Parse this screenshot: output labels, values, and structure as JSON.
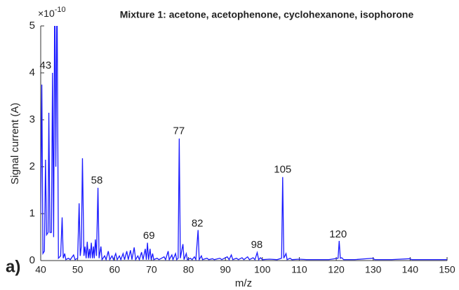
{
  "chart_data": {
    "type": "line",
    "title": "Mixture 1: acetone, acetophenone, cyclohexanone, isophorone",
    "panel_label": "a)",
    "x_label": "m/z",
    "y_label": "Signal current (A)",
    "y_multiplier": {
      "base": "×10",
      "exponent": "-10"
    },
    "color": "#1a1aff",
    "xlim": [
      40,
      150
    ],
    "xticks": [
      40,
      50,
      60,
      70,
      80,
      90,
      100,
      110,
      120,
      130,
      140,
      150
    ],
    "ylim": [
      0,
      5
    ],
    "yticks": [
      0,
      1,
      2,
      3,
      4,
      5
    ],
    "x": [
      40,
      40.3,
      40.6,
      41,
      41.3,
      41.6,
      42,
      42.2,
      42.5,
      42.9,
      43.2,
      43.5,
      43.8,
      44.1,
      44.4,
      44.8,
      45.4,
      45.8,
      46.1,
      46.5,
      46.8,
      47.5,
      48,
      48.9,
      49.3,
      50,
      50.4,
      50.7,
      51,
      51.3,
      51.7,
      52,
      52.3,
      52.6,
      52.9,
      53.2,
      53.4,
      53.7,
      54,
      54.3,
      54.5,
      54.8,
      55.1,
      55.5,
      55.8,
      56.3,
      56.6,
      57.3,
      57.7,
      58.3,
      58.7,
      59.3,
      59.7,
      60.3,
      60.7,
      61.3,
      61.7,
      62.3,
      62.7,
      63.3,
      63.7,
      64.3,
      64.7,
      65.3,
      65.7,
      66.3,
      66.7,
      67.3,
      67.7,
      68.3,
      68.6,
      68.9,
      69.2,
      69.6,
      69.9,
      70.3,
      70.6,
      71.5,
      72,
      73.4,
      73.8,
      74.5,
      74.8,
      75.5,
      75.8,
      76.5,
      76.8,
      77.2,
      77.5,
      77.8,
      78.5,
      78.8,
      79.4,
      79.7,
      80.5,
      81,
      81.6,
      82,
      82.6,
      82.9,
      83.5,
      83.8,
      85,
      85.5,
      86.5,
      87,
      88.5,
      89,
      90.5,
      91,
      91.6,
      92,
      93,
      93.5,
      94.5,
      95,
      96,
      96.5,
      97.5,
      98,
      98.6,
      99,
      99.5,
      100,
      102,
      104,
      105.2,
      105.5,
      105.8,
      106.4,
      106.7,
      107.5,
      108,
      110,
      112,
      115,
      118,
      120.5,
      120.8,
      121.1,
      121.5,
      122,
      125,
      130,
      130.4,
      135,
      140,
      140.4,
      145,
      150
    ],
    "values": [
      1,
      3.75,
      0.15,
      0.2,
      2.15,
      0.55,
      0.6,
      3.15,
      0.6,
      0.6,
      4,
      0.5,
      6,
      2,
      6,
      0.05,
      0.1,
      0.92,
      0.05,
      0.15,
      0.02,
      0.05,
      0.02,
      0.12,
      0.02,
      0.05,
      1.22,
      0.1,
      0.3,
      2.18,
      0.1,
      0.3,
      0.05,
      0.4,
      0.05,
      0.25,
      0.05,
      0.38,
      0.05,
      0.3,
      0.05,
      0.45,
      0.1,
      1.55,
      0.05,
      0.3,
      0.02,
      0.1,
      0.02,
      0.2,
      0.02,
      0.1,
      0.02,
      0.15,
      0.02,
      0.1,
      0.02,
      0.15,
      0.02,
      0.2,
      0.02,
      0.22,
      0.02,
      0.28,
      0.02,
      0.1,
      0.02,
      0.18,
      0.02,
      0.25,
      0.02,
      0.38,
      0.02,
      0.25,
      0.02,
      0.15,
      0.02,
      0.05,
      0.02,
      0.08,
      0.02,
      0.2,
      0.02,
      0.12,
      0.02,
      0.15,
      0.02,
      0.05,
      2.6,
      0.05,
      0.35,
      0.02,
      0.15,
      0.02,
      0.05,
      0.02,
      0.08,
      0.02,
      0.65,
      0.02,
      0.1,
      0.02,
      0.05,
      0.02,
      0.04,
      0.02,
      0.05,
      0.02,
      0.08,
      0.02,
      0.12,
      0.02,
      0.05,
      0.02,
      0.06,
      0.02,
      0.08,
      0.02,
      0.06,
      0.02,
      0.17,
      0.02,
      0.06,
      0.02,
      0.03,
      0.02,
      0.05,
      1.78,
      0.05,
      0.15,
      0.02,
      0.05,
      0.02,
      0.03,
      0.02,
      0.02,
      0.02,
      0.05,
      0.42,
      0.05,
      0.06,
      0.02,
      0.02,
      0.05,
      0.02,
      0.02,
      0.04,
      0.02,
      0.02,
      0.02
    ],
    "annotations": [
      {
        "label": "43",
        "x": 41.3,
        "y": 4.15
      },
      {
        "label": "58",
        "x": 55.2,
        "y": 1.7
      },
      {
        "label": "69",
        "x": 69.3,
        "y": 0.52
      },
      {
        "label": "77",
        "x": 77.4,
        "y": 2.75
      },
      {
        "label": "82",
        "x": 82.4,
        "y": 0.78
      },
      {
        "label": "98",
        "x": 98.5,
        "y": 0.33
      },
      {
        "label": "105",
        "x": 105.5,
        "y": 1.93
      },
      {
        "label": "120",
        "x": 120.5,
        "y": 0.55
      }
    ]
  }
}
